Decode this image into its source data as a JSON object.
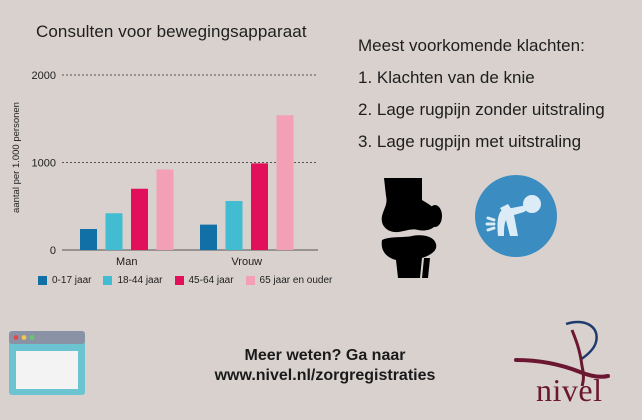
{
  "chart_data": {
    "type": "bar",
    "title": "Consulten voor bewegingsapparaat",
    "ylabel": "aantal per 1.000 personen",
    "xlabel": "",
    "ylim": [
      0,
      2000
    ],
    "yticks": [
      0,
      1000,
      2000
    ],
    "grid": true,
    "categories": [
      "Man",
      "Vrouw"
    ],
    "series": [
      {
        "name": "0-17 jaar",
        "color": "#1170a6",
        "values": [
          240,
          290
        ]
      },
      {
        "name": "18-44 jaar",
        "color": "#42bcd0",
        "values": [
          420,
          560
        ]
      },
      {
        "name": "45-64 jaar",
        "color": "#e2105a",
        "values": [
          700,
          990
        ]
      },
      {
        "name": "65 jaar en ouder",
        "color": "#f39fb4",
        "values": [
          920,
          1540
        ]
      }
    ],
    "legend_position": "bottom"
  },
  "complaints": {
    "title": "Meest voorkomende klachten:",
    "items": [
      "1. Klachten van de knie",
      "2. Lage rugpijn zonder uitstraling",
      "3. Lage rugpijn met uitstraling"
    ]
  },
  "cta": {
    "line1": "Meer weten? Ga naar",
    "line2": "www.nivel.nl/zorgregistraties"
  },
  "logo": {
    "text": "nivel",
    "color": "#6b1732"
  },
  "icons": {
    "browser": "browser-window-icon",
    "knee": "knee-joint-icon",
    "back_pain": "back-pain-icon"
  },
  "colors": {
    "background": "#d8d1ce",
    "icon_circle": "#3b8cc0"
  }
}
